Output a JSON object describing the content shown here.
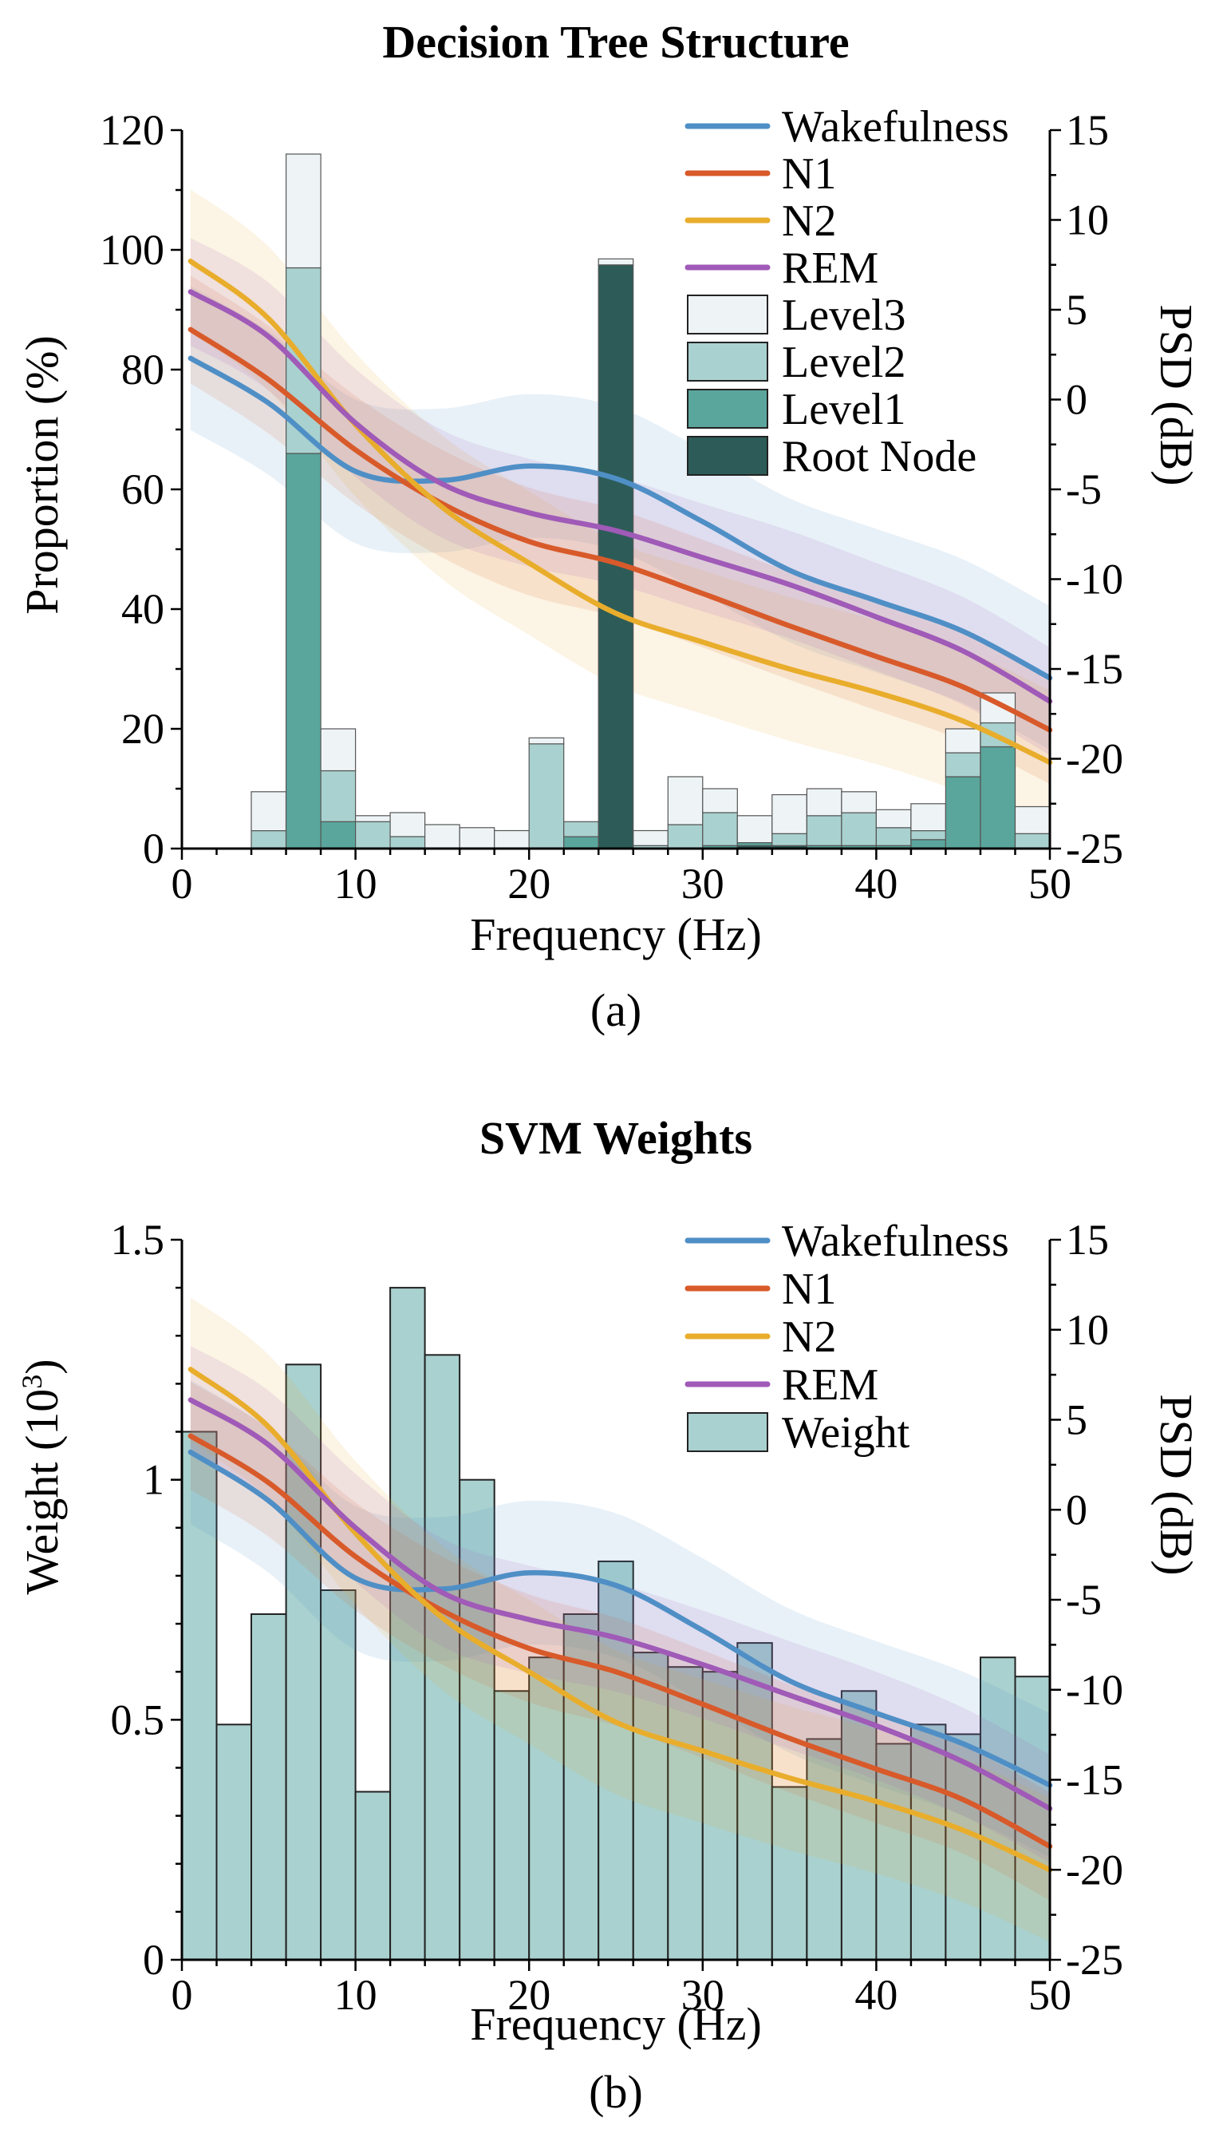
{
  "colors": {
    "Wakefulness": "#4f8fc6",
    "N1": "#d85a2a",
    "N2": "#e9ad2c",
    "REM": "#a05ab7",
    "Level3": "#eef4f6",
    "Level2": "#a9d1cf",
    "Level1": "#5aa69c",
    "Root Node": "#2d5c58",
    "Weight": "#a9d1cf"
  },
  "chart_data": [
    {
      "type": "bar",
      "title": "Decision Tree Structure",
      "caption": "(a)",
      "xlabel": "Frequency (Hz)",
      "ylabel": "Proportion (%)",
      "ylabel2": "PSD (dB)",
      "xlim": [
        0,
        50
      ],
      "ylim": [
        0,
        120
      ],
      "y2lim": [
        -25,
        15
      ],
      "xticks": [
        "0",
        "10",
        "20",
        "30",
        "40",
        "50"
      ],
      "yticks": [
        "0",
        "20",
        "40",
        "60",
        "80",
        "100",
        "120"
      ],
      "y2ticks": [
        "-25",
        "-20",
        "-15",
        "-10",
        "-5",
        "0",
        "5",
        "10",
        "15"
      ],
      "legend_position": "top-right",
      "stack_order": [
        "Root Node",
        "Level1",
        "Level2",
        "Level3"
      ],
      "bar_x": [
        5,
        7,
        9,
        11,
        13,
        15,
        17,
        19,
        21,
        23,
        25,
        27,
        29,
        31,
        33,
        35,
        37,
        39,
        41,
        43,
        45,
        47,
        49
      ],
      "bar_series": [
        {
          "name": "Root Node",
          "values": [
            0,
            0,
            0,
            0,
            0,
            0,
            0,
            0,
            0,
            0,
            97.5,
            0,
            0,
            0,
            0.5,
            0.5,
            0,
            0,
            0,
            0,
            0,
            0,
            0
          ]
        },
        {
          "name": "Level1",
          "values": [
            0,
            66,
            4.5,
            0,
            0,
            0,
            0,
            0,
            0,
            2,
            0,
            0,
            0,
            0.5,
            0.5,
            0,
            0.5,
            0.5,
            0.5,
            1.5,
            12,
            17,
            0
          ]
        },
        {
          "name": "Level2",
          "values": [
            3,
            31,
            8.5,
            4.5,
            2,
            0,
            0,
            0,
            17.5,
            2.5,
            0,
            0.5,
            4,
            5.5,
            0,
            2,
            5,
            5.5,
            3,
            1.5,
            4,
            4,
            2.5
          ]
        },
        {
          "name": "Level3",
          "values": [
            6.5,
            19,
            7,
            1,
            4,
            4,
            3.5,
            3,
            1,
            0,
            1,
            2.5,
            8,
            4,
            4.5,
            6.5,
            4.5,
            3.5,
            3,
            4.5,
            4,
            5,
            4.5
          ]
        }
      ],
      "line_x": [
        0.5,
        5,
        10,
        15,
        20,
        25,
        30,
        35,
        40,
        45,
        50
      ],
      "line_series": [
        {
          "name": "Wakefulness",
          "values": [
            2.3,
            -0.2,
            -4.0,
            -4.5,
            -3.7,
            -4.4,
            -6.8,
            -9.5,
            -11.2,
            -12.9,
            -15.5
          ],
          "band": 4
        },
        {
          "name": "N1",
          "values": [
            3.9,
            1.1,
            -2.8,
            -5.8,
            -7.9,
            -9.1,
            -10.8,
            -12.6,
            -14.3,
            -16.0,
            -18.4
          ],
          "band": 3
        },
        {
          "name": "N2",
          "values": [
            7.7,
            4.5,
            -1.4,
            -6.0,
            -9.1,
            -11.9,
            -13.5,
            -15.0,
            -16.3,
            -17.9,
            -20.2
          ],
          "band": 4
        },
        {
          "name": "REM",
          "values": [
            6.0,
            3.5,
            -1.3,
            -4.7,
            -6.3,
            -7.3,
            -8.8,
            -10.3,
            -12.1,
            -14.0,
            -16.8
          ],
          "band": 3
        }
      ]
    },
    {
      "type": "bar",
      "title": "SVM Weights",
      "caption": "(b)",
      "xlabel": "Frequency (Hz)",
      "ylabel": "Weight (10",
      "ylabel_sup": "3",
      "ylabel_end": ")",
      "ylabel2": "PSD (dB)",
      "xlim": [
        0,
        50
      ],
      "ylim": [
        0,
        1.5
      ],
      "y2lim": [
        -25,
        15
      ],
      "xticks": [
        "0",
        "10",
        "20",
        "30",
        "40",
        "50"
      ],
      "yticks": [
        "0",
        "0.5",
        "1",
        "1.5"
      ],
      "y2ticks": [
        "-25",
        "-20",
        "-15",
        "-10",
        "-5",
        "0",
        "5",
        "10",
        "15"
      ],
      "legend_position": "top-right",
      "bar_x": [
        1,
        3,
        5,
        7,
        9,
        11,
        13,
        15,
        17,
        19,
        21,
        23,
        25,
        27,
        29,
        31,
        33,
        35,
        37,
        39,
        41,
        43,
        45,
        47,
        49
      ],
      "bar_series": [
        {
          "name": "Weight",
          "values": [
            1.1,
            0.49,
            0.72,
            1.24,
            0.77,
            0.35,
            1.4,
            1.26,
            1.0,
            0.56,
            0.63,
            0.72,
            0.83,
            0.64,
            0.61,
            0.6,
            0.66,
            0.36,
            0.46,
            0.56,
            0.45,
            0.49,
            0.47,
            0.63,
            0.59
          ]
        }
      ],
      "line_x": [
        0.5,
        5,
        10,
        15,
        20,
        25,
        30,
        35,
        40,
        45,
        50
      ],
      "line_series": [
        {
          "name": "Wakefulness",
          "values": [
            3.2,
            0.5,
            -3.8,
            -4.4,
            -3.5,
            -4.2,
            -6.7,
            -9.5,
            -11.3,
            -13.0,
            -15.3
          ],
          "band": 4
        },
        {
          "name": "N1",
          "values": [
            4.1,
            1.5,
            -2.6,
            -5.6,
            -7.7,
            -9.0,
            -10.8,
            -12.7,
            -14.4,
            -16.1,
            -18.7
          ],
          "band": 3
        },
        {
          "name": "N2",
          "values": [
            7.8,
            4.6,
            -1.3,
            -6.0,
            -9.0,
            -11.8,
            -13.4,
            -14.9,
            -16.2,
            -17.8,
            -20.0
          ],
          "band": 4
        },
        {
          "name": "REM",
          "values": [
            6.1,
            3.6,
            -1.0,
            -4.6,
            -6.1,
            -7.1,
            -8.6,
            -10.3,
            -12.0,
            -14.0,
            -16.6
          ],
          "band": 3
        }
      ]
    }
  ]
}
